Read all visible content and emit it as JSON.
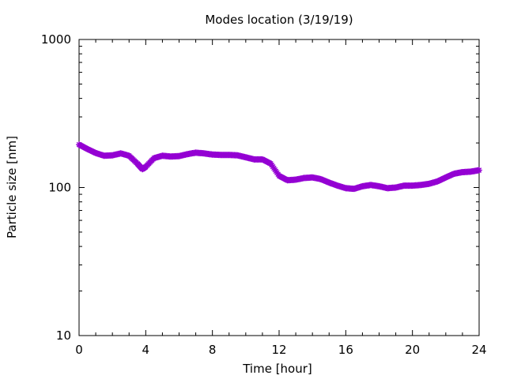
{
  "chart_data": {
    "type": "line",
    "title": "Modes location (3/19/19)",
    "xlabel": "Time [hour]",
    "ylabel": "Particle size [nm]",
    "xlim": [
      0,
      24
    ],
    "ylim": [
      10,
      1000
    ],
    "y_scale": "log",
    "x_ticks": [
      0,
      4,
      8,
      12,
      16,
      20,
      24
    ],
    "x_tick_labels": [
      "0",
      "4",
      "8",
      "12",
      "16",
      "20",
      "24"
    ],
    "y_ticks": [
      10,
      100,
      1000
    ],
    "y_tick_labels": [
      "10",
      "100",
      "1000"
    ],
    "grid": false,
    "legend": "none",
    "series": [
      {
        "color": "#9400d3",
        "marker": "star",
        "x": [
          0.0,
          0.5,
          1.0,
          1.5,
          2.0,
          2.5,
          3.0,
          3.5,
          3.8,
          4.0,
          4.5,
          5.0,
          5.5,
          6.0,
          6.5,
          7.0,
          7.5,
          8.0,
          8.5,
          9.0,
          9.5,
          10.0,
          10.5,
          11.0,
          11.5,
          12.0,
          12.5,
          13.0,
          13.5,
          14.0,
          14.5,
          15.0,
          15.5,
          16.0,
          16.5,
          17.0,
          17.5,
          18.0,
          18.5,
          19.0,
          19.5,
          20.0,
          20.5,
          21.0,
          21.5,
          22.0,
          22.5,
          23.0,
          23.5,
          24.0
        ],
        "y": [
          195,
          182,
          171,
          164,
          165,
          170,
          164,
          145,
          133,
          138,
          158,
          164,
          162,
          163,
          168,
          172,
          170,
          167,
          166,
          166,
          165,
          160,
          155,
          155,
          145,
          120,
          112,
          113,
          116,
          117,
          114,
          108,
          103,
          99,
          98,
          102,
          104,
          102,
          99,
          100,
          103,
          103,
          104,
          106,
          110,
          117,
          124,
          127,
          128,
          131
        ]
      }
    ]
  }
}
